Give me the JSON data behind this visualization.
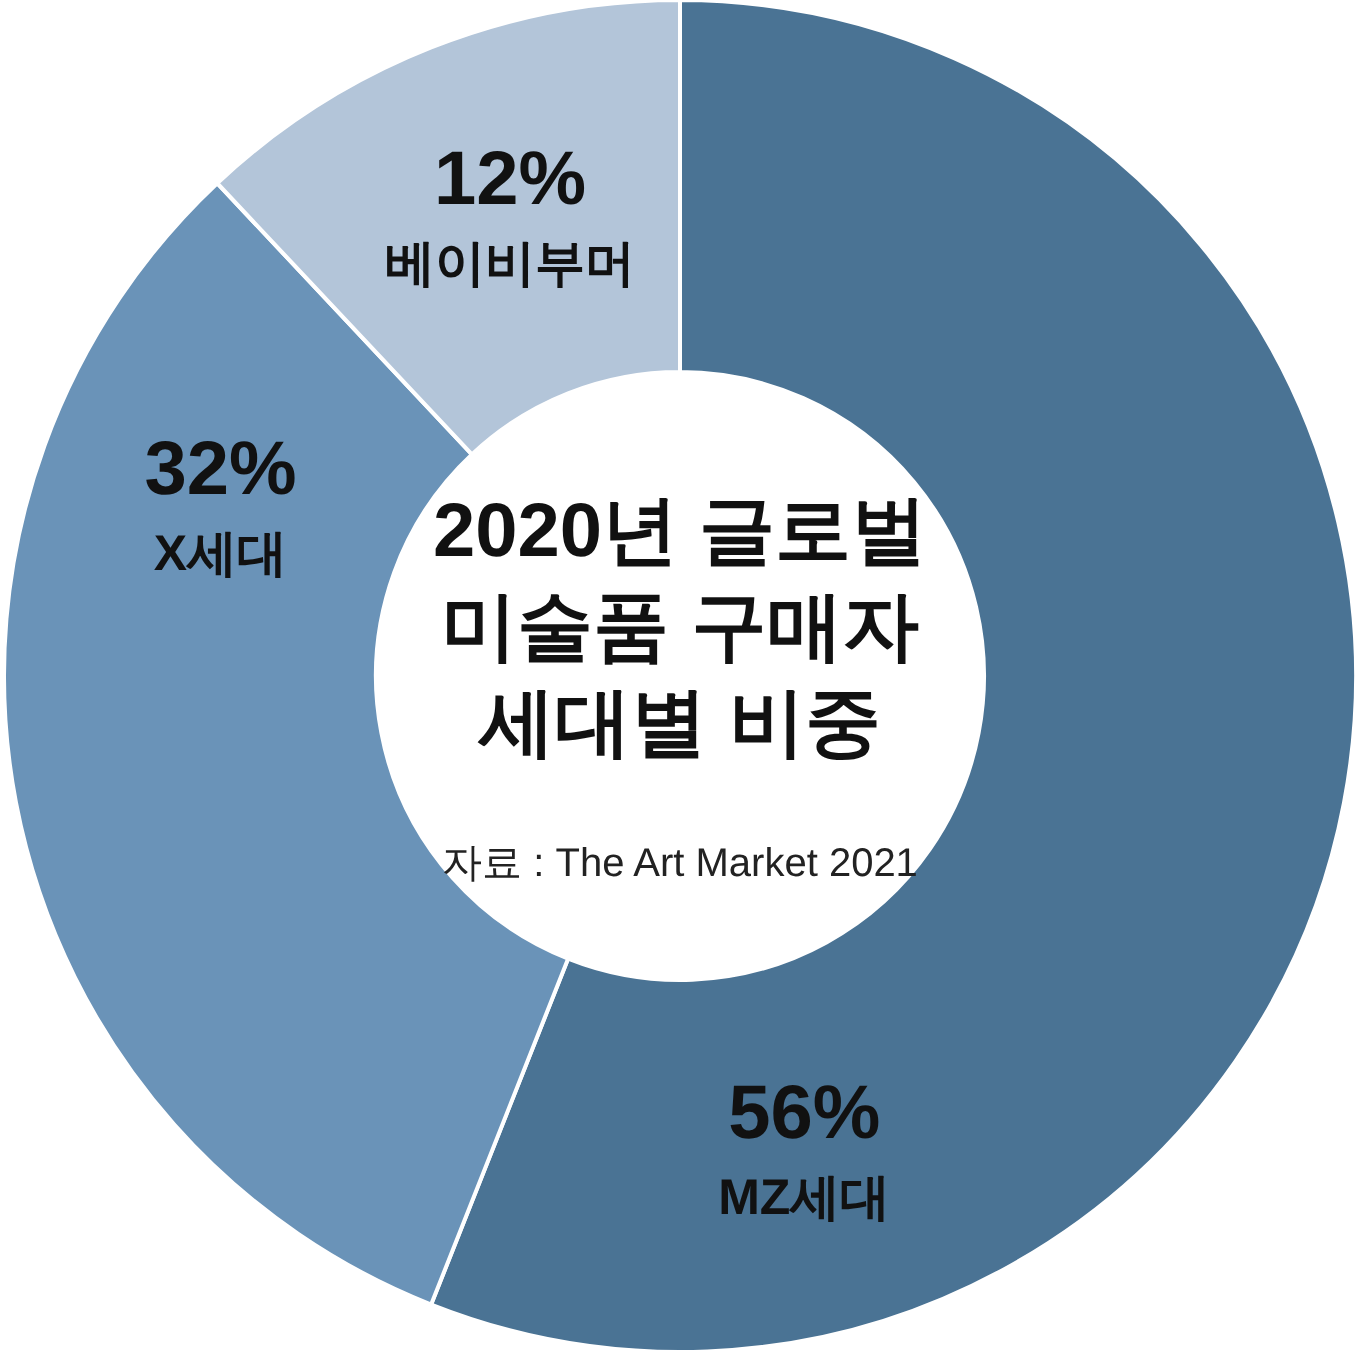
{
  "chart_data": {
    "type": "donut",
    "title": "2020년 글로벌\n미술품 구매자\n세대별 비중",
    "categories": [
      "MZ세대",
      "X세대",
      "베이비부머"
    ],
    "values": [
      56,
      32,
      12
    ],
    "colors": [
      "#4a7394",
      "#6a93b8",
      "#b3c5d9"
    ],
    "value_labels": [
      "56%",
      "32%",
      "12%"
    ],
    "annotations": [
      "자료 : The Art Market 2021"
    ]
  }
}
